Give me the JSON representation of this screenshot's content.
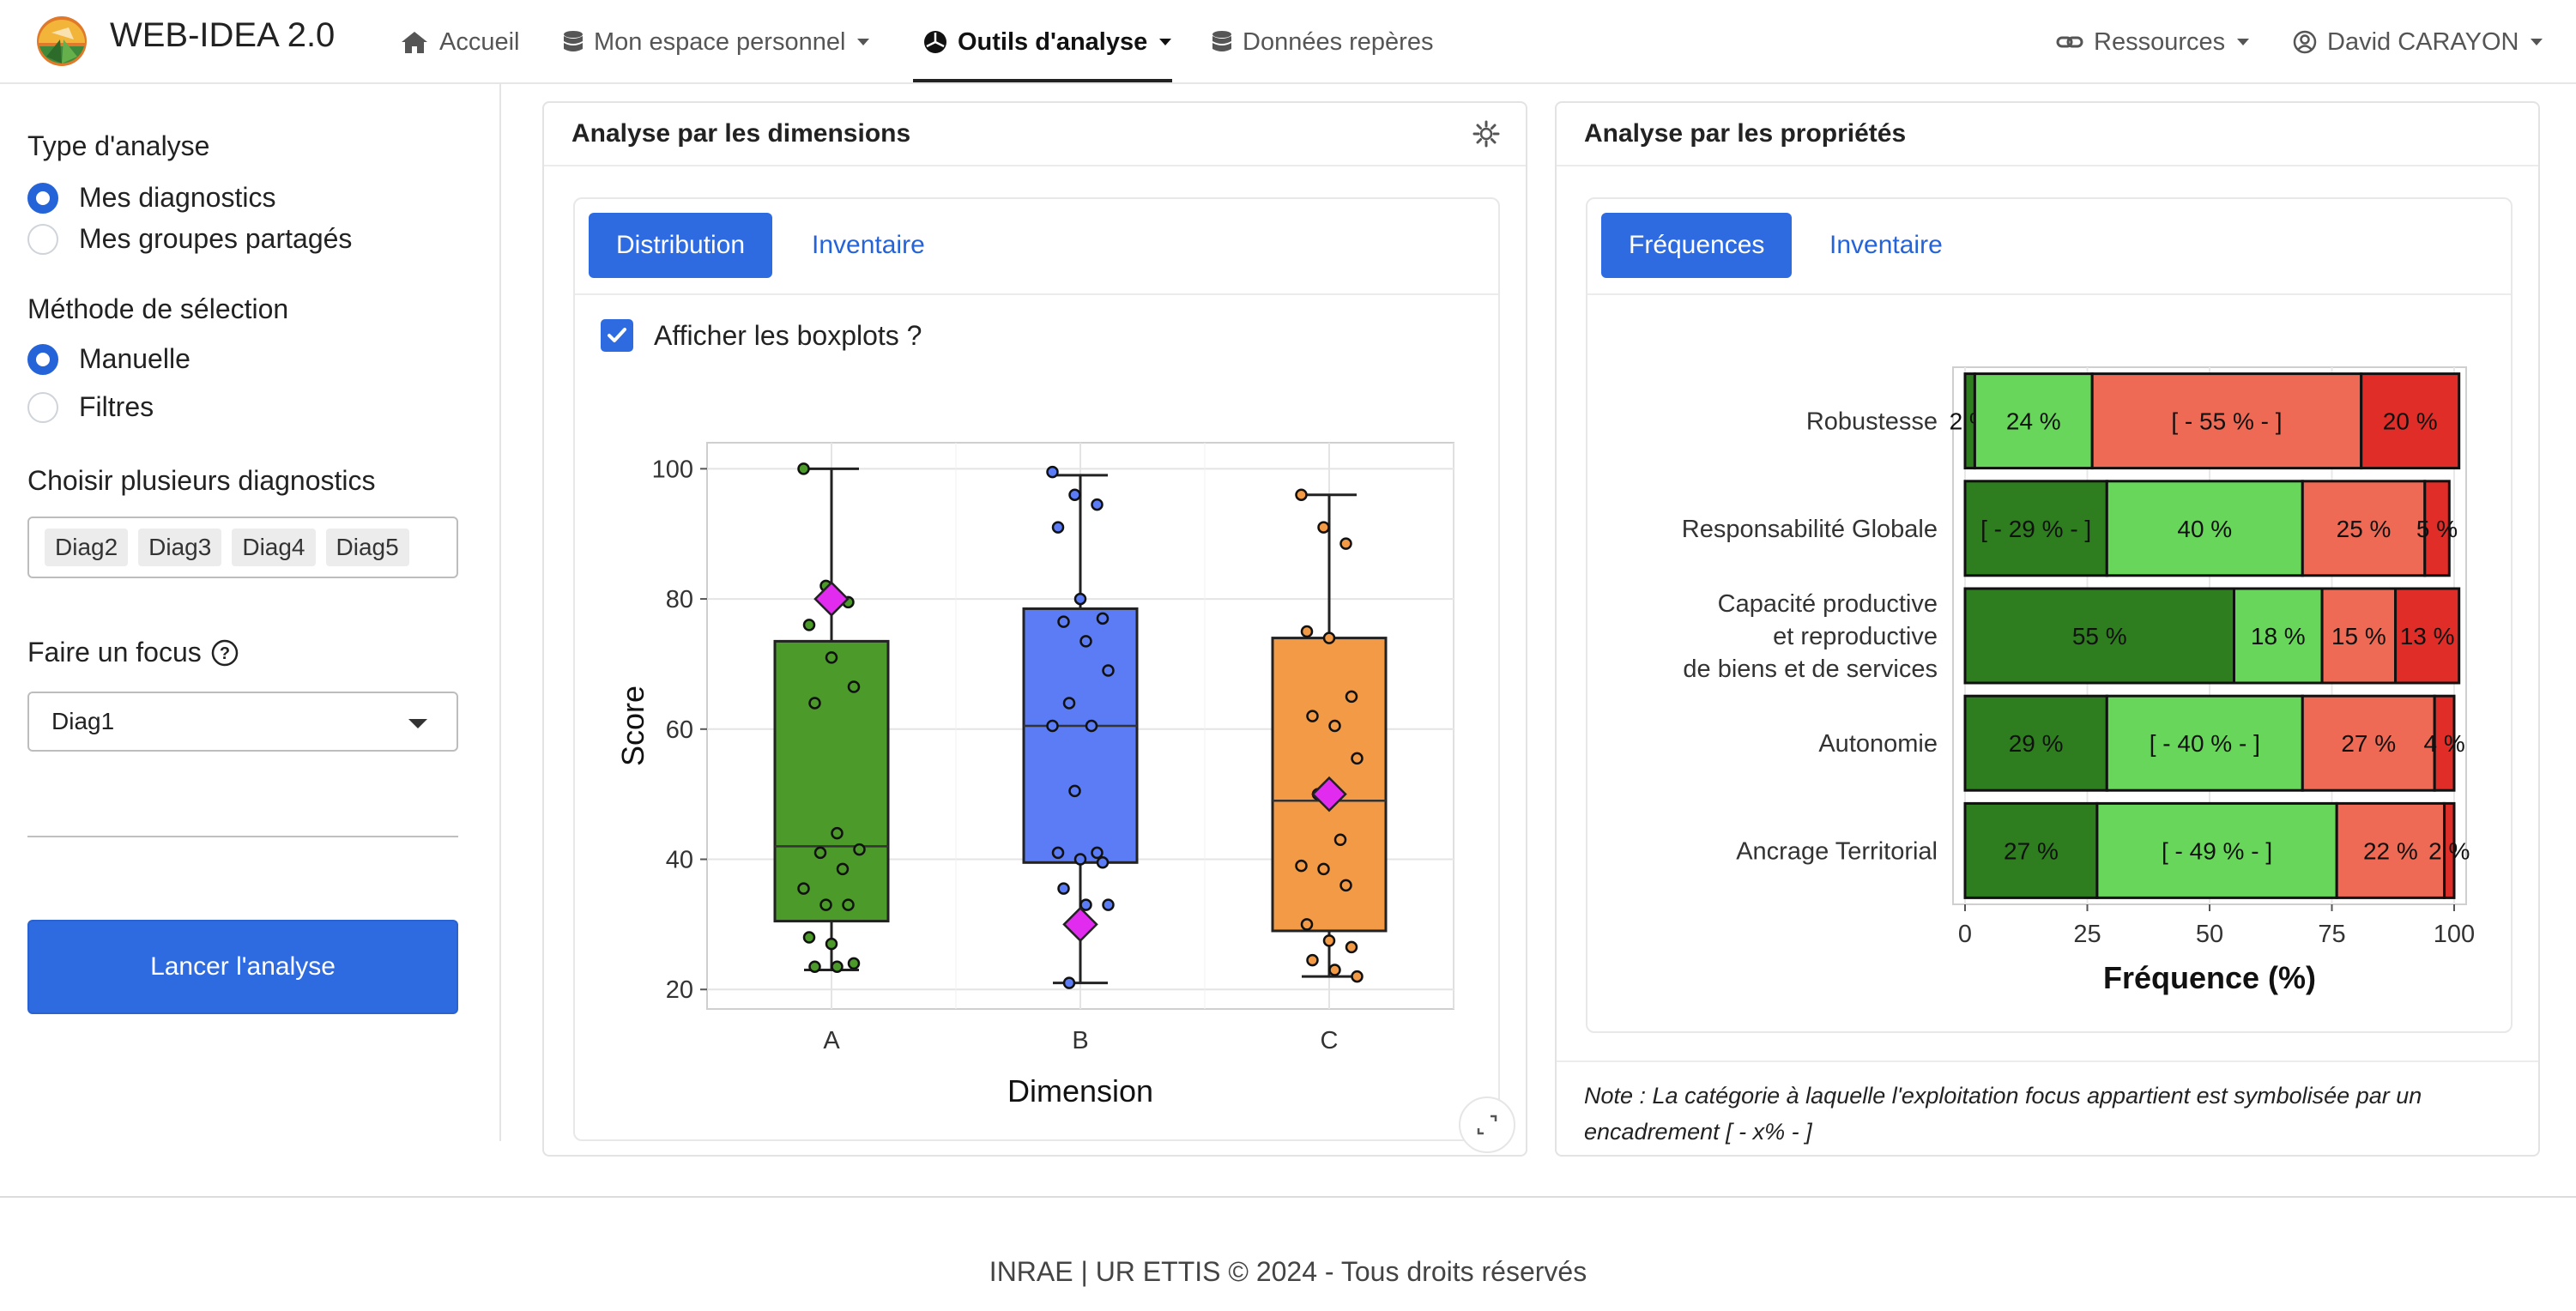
{
  "nav": {
    "brand": "WEB-IDEA 2.0",
    "items": [
      {
        "label": "Accueil",
        "icon": "home-icon"
      },
      {
        "label": "Mon espace personnel",
        "icon": "database-icon"
      },
      {
        "label": "Outils d'analyse",
        "icon": "chart-pie-icon",
        "active": true
      },
      {
        "label": "Données repères",
        "icon": "database-icon"
      }
    ],
    "right": [
      {
        "label": "Ressources",
        "icon": "link-icon"
      },
      {
        "label": "David CARAYON",
        "icon": "user-circle-icon"
      }
    ]
  },
  "sidebar": {
    "type_label": "Type d'analyse",
    "type_options": [
      "Mes diagnostics",
      "Mes groupes partagés"
    ],
    "type_selected": "Mes diagnostics",
    "method_label": "Méthode de sélection",
    "method_options": [
      "Manuelle",
      "Filtres"
    ],
    "method_selected": "Manuelle",
    "choose_label": "Choisir plusieurs diagnostics",
    "chips": [
      "Diag2",
      "Diag3",
      "Diag4",
      "Diag5"
    ],
    "focus_label": "Faire un focus",
    "focus_value": "Diag1",
    "run_button": "Lancer l'analyse"
  },
  "left_card": {
    "title": "Analyse par les dimensions",
    "tabs": [
      "Distribution",
      "Inventaire"
    ],
    "checkbox_label": "Afficher les boxplots ?",
    "checkbox_checked": true
  },
  "right_card": {
    "title": "Analyse par les propriétés",
    "tabs": [
      "Fréquences",
      "Inventaire"
    ],
    "note": "Note : La catégorie à laquelle l'exploitation focus appartient est symbolisée par un encadrement [ - x% - ]"
  },
  "footer": "INRAE | UR ETTIS © 2024 - Tous droits réservés",
  "colors": {
    "primary": "#2e6be0",
    "A": "#4c9a2a",
    "B": "#5b7cf5",
    "C": "#f29a45",
    "focus": "#e12cf0",
    "cat1": "#2e7d1e",
    "cat2": "#67d65a",
    "cat3": "#ee6a55",
    "cat4": "#e02d28"
  },
  "chart_data": [
    {
      "type": "box",
      "xlabel": "Dimension",
      "ylabel": "Score",
      "categories": [
        "A",
        "B",
        "C"
      ],
      "ylim": [
        17,
        104
      ],
      "yticks": [
        20,
        40,
        60,
        80,
        100
      ],
      "boxes": [
        {
          "name": "A",
          "whisker_low": 23,
          "q1": 30.5,
          "median": 42,
          "q3": 73.5,
          "whisker_high": 100,
          "focus": 80
        },
        {
          "name": "B",
          "whisker_low": 21,
          "q1": 39.5,
          "median": 60.5,
          "q3": 78.5,
          "whisker_high": 99,
          "focus": 30
        },
        {
          "name": "C",
          "whisker_low": 22,
          "q1": 29,
          "median": 49,
          "q3": 74,
          "whisker_high": 96,
          "focus": 50
        }
      ],
      "points": {
        "A": [
          100,
          82,
          79.5,
          76,
          71,
          66.5,
          64,
          44,
          41.5,
          41,
          38.5,
          35.5,
          33,
          33,
          28,
          27,
          24,
          23.5,
          23.5
        ],
        "B": [
          99.5,
          96,
          94.5,
          91,
          80,
          77,
          76.5,
          73.5,
          69,
          64,
          60.5,
          60.5,
          50.5,
          41,
          41,
          40,
          39.5,
          35.5,
          33,
          33,
          21
        ],
        "C": [
          96,
          91,
          88.5,
          75,
          74,
          65,
          62,
          60.5,
          55.5,
          50,
          43,
          39,
          38.5,
          36,
          30,
          27.5,
          26.5,
          24.5,
          23,
          22
        ]
      }
    },
    {
      "type": "bar",
      "stacked": true,
      "orientation": "horizontal",
      "xlabel": "Fréquence (%)",
      "xticks": [
        0,
        25,
        50,
        75,
        100
      ],
      "categories": [
        "Robustesse",
        "Responsabilité Globale",
        "Capacité productive\net reproductive\nde biens et de services",
        "Autonomie",
        "Ancrage Territorial"
      ],
      "series": [
        {
          "values": [
            2,
            29,
            55,
            29,
            27
          ],
          "labels": [
            "2 %",
            "[ - 29 % - ]",
            "55 %",
            "29 %",
            "27 %"
          ]
        },
        {
          "values": [
            24,
            40,
            18,
            40,
            49
          ],
          "labels": [
            "24 %",
            "40 %",
            "18 %",
            "[ - 40 % - ]",
            "[ - 49 % - ]"
          ]
        },
        {
          "values": [
            55,
            25,
            15,
            27,
            22
          ],
          "labels": [
            "[ - 55 % - ]",
            "25 %",
            "15 %",
            "27 %",
            "22 %"
          ]
        },
        {
          "values": [
            20,
            5,
            13,
            4,
            2
          ],
          "labels": [
            "20 %",
            "5 %",
            "13 %",
            "4 %",
            "2 %"
          ]
        }
      ]
    }
  ]
}
